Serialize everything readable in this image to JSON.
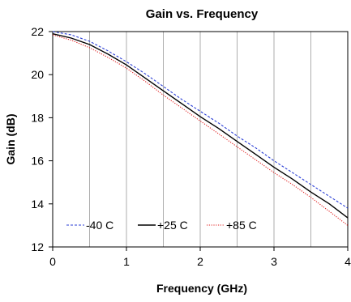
{
  "chart_data": {
    "type": "line",
    "title": "Gain vs. Frequency",
    "xlabel": "Frequency (GHz)",
    "ylabel": "Gain (dB)",
    "xlim": [
      0,
      4
    ],
    "ylim": [
      12,
      22
    ],
    "x_ticks": [
      0,
      1,
      2,
      3,
      4
    ],
    "y_ticks": [
      12,
      14,
      16,
      18,
      20,
      22
    ],
    "x_tick_labels": [
      "0",
      "1",
      "2",
      "3",
      "4"
    ],
    "y_tick_labels": [
      "12",
      "14",
      "16",
      "18",
      "20",
      "22"
    ],
    "grid": "vertical",
    "legend_position": "bottom-left",
    "series": [
      {
        "name": "-40 C",
        "color": "#2b3fd6",
        "line_style": "dashed",
        "x": [
          0,
          0.25,
          0.5,
          0.75,
          1.0,
          1.25,
          1.5,
          1.75,
          2.0,
          2.25,
          2.5,
          2.75,
          3.0,
          3.25,
          3.5,
          3.75,
          4.0
        ],
        "y": [
          22.0,
          21.85,
          21.55,
          21.1,
          20.6,
          20.05,
          19.45,
          18.85,
          18.3,
          17.75,
          17.15,
          16.6,
          16.0,
          15.45,
          14.9,
          14.35,
          13.8
        ]
      },
      {
        "name": "+25 C",
        "color": "#000000",
        "line_style": "solid",
        "x": [
          0,
          0.25,
          0.5,
          0.75,
          1.0,
          1.25,
          1.5,
          1.75,
          2.0,
          2.25,
          2.5,
          2.75,
          3.0,
          3.25,
          3.5,
          3.75,
          4.0
        ],
        "y": [
          21.9,
          21.7,
          21.4,
          20.95,
          20.45,
          19.85,
          19.25,
          18.65,
          18.05,
          17.5,
          16.9,
          16.3,
          15.7,
          15.15,
          14.55,
          14.0,
          13.35
        ]
      },
      {
        "name": "+85 C",
        "color": "#e02020",
        "line_style": "dotted",
        "x": [
          0,
          0.25,
          0.5,
          0.75,
          1.0,
          1.25,
          1.5,
          1.75,
          2.0,
          2.25,
          2.5,
          2.75,
          3.0,
          3.25,
          3.5,
          3.75,
          4.0
        ],
        "y": [
          21.85,
          21.6,
          21.25,
          20.8,
          20.3,
          19.7,
          19.05,
          18.45,
          17.85,
          17.25,
          16.65,
          16.05,
          15.45,
          14.9,
          14.3,
          13.65,
          13.0
        ]
      }
    ]
  }
}
